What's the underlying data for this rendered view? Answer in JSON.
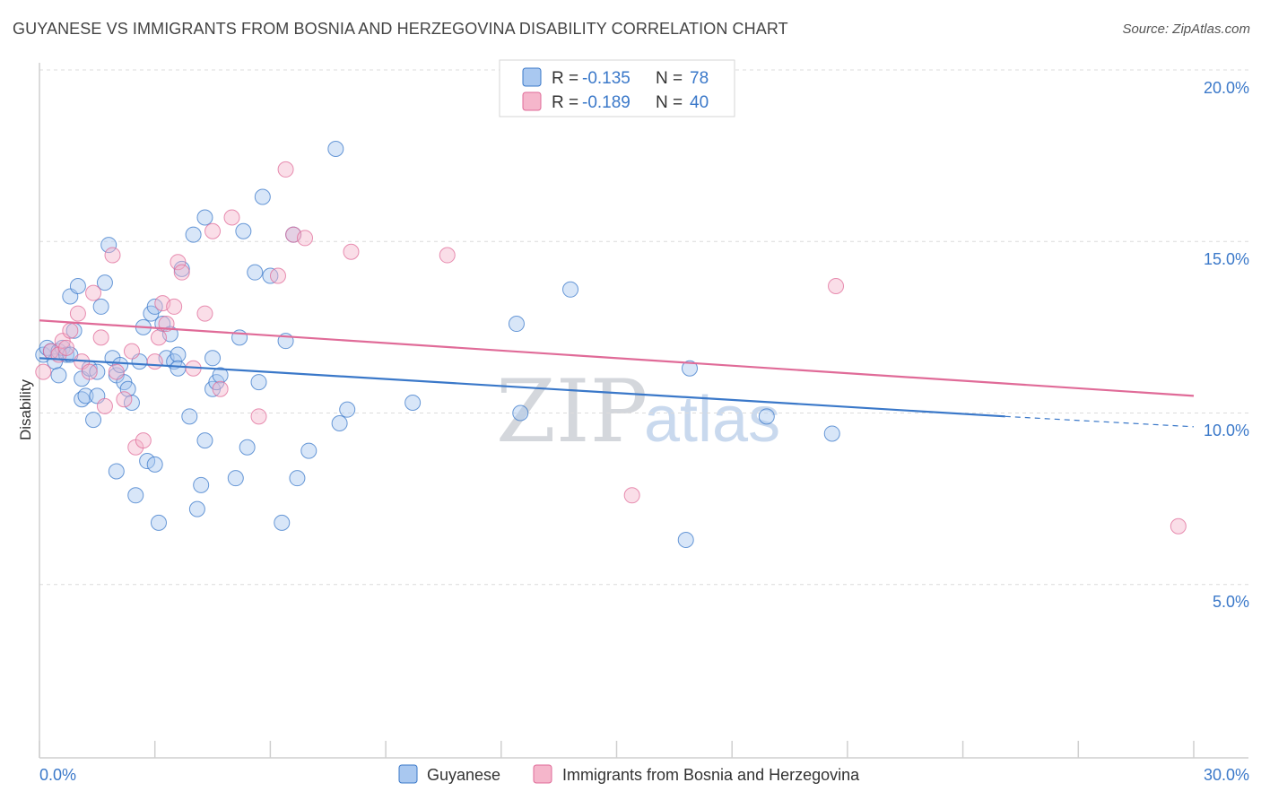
{
  "title": "GUYANESE VS IMMIGRANTS FROM BOSNIA AND HERZEGOVINA DISABILITY CORRELATION CHART",
  "source": "Source: ZipAtlas.com",
  "watermark": {
    "zip": "ZIP",
    "atlas": "atlas"
  },
  "legend_top": {
    "rows": [
      {
        "r_label": "R =",
        "r_value": "-0.135",
        "n_label": "N =",
        "n_value": "78"
      },
      {
        "r_label": "R =",
        "r_value": "-0.189",
        "n_label": "N =",
        "n_value": "40"
      }
    ]
  },
  "legend_bottom": [
    "Guyanese",
    "Immigrants from Bosnia and Herzegovina"
  ],
  "chart_data": {
    "type": "scatter",
    "title": "GUYANESE VS IMMIGRANTS FROM BOSNIA AND HERZEGOVINA DISABILITY CORRELATION CHART",
    "xlabel": "",
    "ylabel": "Disability",
    "xlim": [
      0,
      30
    ],
    "ylim": [
      0,
      20
    ],
    "x_tick_labels": [
      "0.0%",
      "30.0%"
    ],
    "y_ticks": [
      5,
      10,
      15,
      20
    ],
    "y_tick_labels": [
      "5.0%",
      "10.0%",
      "15.0%",
      "20.0%"
    ],
    "grid": true,
    "colors": {
      "blue": "#3a78c9",
      "blue_fill": "#a9c8f0",
      "pink": "#e06b98",
      "pink_fill": "#f5b6cb"
    },
    "series": [
      {
        "name": "Guyanese",
        "color": "blue",
        "trend": {
          "x": [
            0,
            25.1
          ],
          "y": [
            11.6,
            9.9
          ],
          "dashed_to_x": 30,
          "dashed_to_y": 9.6
        },
        "points": [
          [
            0.1,
            11.7
          ],
          [
            0.2,
            11.9
          ],
          [
            0.3,
            11.8
          ],
          [
            0.4,
            11.5
          ],
          [
            0.5,
            11.1
          ],
          [
            0.5,
            11.8
          ],
          [
            0.6,
            11.9
          ],
          [
            0.7,
            11.7
          ],
          [
            0.8,
            11.7
          ],
          [
            0.8,
            13.4
          ],
          [
            0.9,
            12.4
          ],
          [
            1.0,
            13.7
          ],
          [
            1.1,
            11.0
          ],
          [
            1.1,
            10.4
          ],
          [
            1.2,
            10.5
          ],
          [
            1.3,
            11.3
          ],
          [
            1.4,
            9.8
          ],
          [
            1.5,
            11.2
          ],
          [
            1.5,
            10.5
          ],
          [
            1.6,
            13.1
          ],
          [
            1.7,
            13.8
          ],
          [
            1.8,
            14.9
          ],
          [
            1.9,
            11.6
          ],
          [
            2.0,
            11.1
          ],
          [
            2.0,
            8.3
          ],
          [
            2.1,
            11.4
          ],
          [
            2.2,
            10.9
          ],
          [
            2.3,
            10.7
          ],
          [
            2.4,
            10.3
          ],
          [
            2.5,
            7.6
          ],
          [
            2.6,
            11.5
          ],
          [
            2.7,
            12.5
          ],
          [
            2.8,
            8.6
          ],
          [
            2.9,
            12.9
          ],
          [
            3.0,
            13.1
          ],
          [
            3.0,
            8.5
          ],
          [
            3.1,
            6.8
          ],
          [
            3.2,
            12.6
          ],
          [
            3.3,
            11.6
          ],
          [
            3.4,
            12.3
          ],
          [
            3.5,
            11.5
          ],
          [
            3.6,
            11.7
          ],
          [
            3.6,
            11.3
          ],
          [
            3.7,
            14.2
          ],
          [
            3.9,
            9.9
          ],
          [
            4.0,
            15.2
          ],
          [
            4.1,
            7.2
          ],
          [
            4.2,
            7.9
          ],
          [
            4.3,
            15.7
          ],
          [
            4.3,
            9.2
          ],
          [
            4.5,
            11.6
          ],
          [
            4.5,
            10.7
          ],
          [
            4.6,
            10.9
          ],
          [
            4.7,
            11.1
          ],
          [
            5.1,
            8.1
          ],
          [
            5.2,
            12.2
          ],
          [
            5.3,
            15.3
          ],
          [
            5.4,
            9.0
          ],
          [
            5.6,
            14.1
          ],
          [
            5.7,
            10.9
          ],
          [
            5.8,
            16.3
          ],
          [
            6.0,
            14.0
          ],
          [
            6.3,
            6.8
          ],
          [
            6.4,
            12.1
          ],
          [
            6.6,
            15.2
          ],
          [
            6.7,
            8.1
          ],
          [
            7.0,
            8.9
          ],
          [
            7.7,
            17.7
          ],
          [
            7.8,
            9.7
          ],
          [
            8.0,
            10.1
          ],
          [
            9.7,
            10.3
          ],
          [
            12.4,
            12.6
          ],
          [
            12.5,
            10.0
          ],
          [
            13.8,
            13.6
          ],
          [
            16.8,
            6.3
          ],
          [
            16.9,
            11.3
          ],
          [
            18.9,
            9.9
          ],
          [
            20.6,
            9.4
          ]
        ]
      },
      {
        "name": "Immigrants from Bosnia and Herzegovina",
        "color": "pink",
        "trend": {
          "x": [
            0,
            30
          ],
          "y": [
            12.7,
            10.5
          ]
        },
        "points": [
          [
            0.1,
            11.2
          ],
          [
            0.3,
            11.8
          ],
          [
            0.5,
            11.7
          ],
          [
            0.6,
            12.1
          ],
          [
            0.7,
            11.9
          ],
          [
            0.8,
            12.4
          ],
          [
            1.0,
            12.9
          ],
          [
            1.1,
            11.5
          ],
          [
            1.3,
            11.2
          ],
          [
            1.4,
            13.5
          ],
          [
            1.6,
            12.2
          ],
          [
            1.7,
            10.2
          ],
          [
            1.9,
            14.6
          ],
          [
            2.0,
            11.2
          ],
          [
            2.2,
            10.4
          ],
          [
            2.4,
            11.8
          ],
          [
            2.5,
            9.0
          ],
          [
            2.7,
            9.2
          ],
          [
            3.0,
            11.5
          ],
          [
            3.1,
            12.2
          ],
          [
            3.2,
            13.2
          ],
          [
            3.3,
            12.6
          ],
          [
            3.5,
            13.1
          ],
          [
            3.6,
            14.4
          ],
          [
            3.7,
            14.1
          ],
          [
            4.0,
            11.3
          ],
          [
            4.3,
            12.9
          ],
          [
            4.5,
            15.3
          ],
          [
            4.7,
            10.7
          ],
          [
            5.0,
            15.7
          ],
          [
            5.7,
            9.9
          ],
          [
            6.2,
            14.0
          ],
          [
            6.4,
            17.1
          ],
          [
            6.6,
            15.2
          ],
          [
            6.9,
            15.1
          ],
          [
            8.1,
            14.7
          ],
          [
            10.6,
            14.6
          ],
          [
            15.4,
            7.6
          ],
          [
            20.7,
            13.7
          ],
          [
            29.6,
            6.7
          ]
        ]
      }
    ]
  }
}
